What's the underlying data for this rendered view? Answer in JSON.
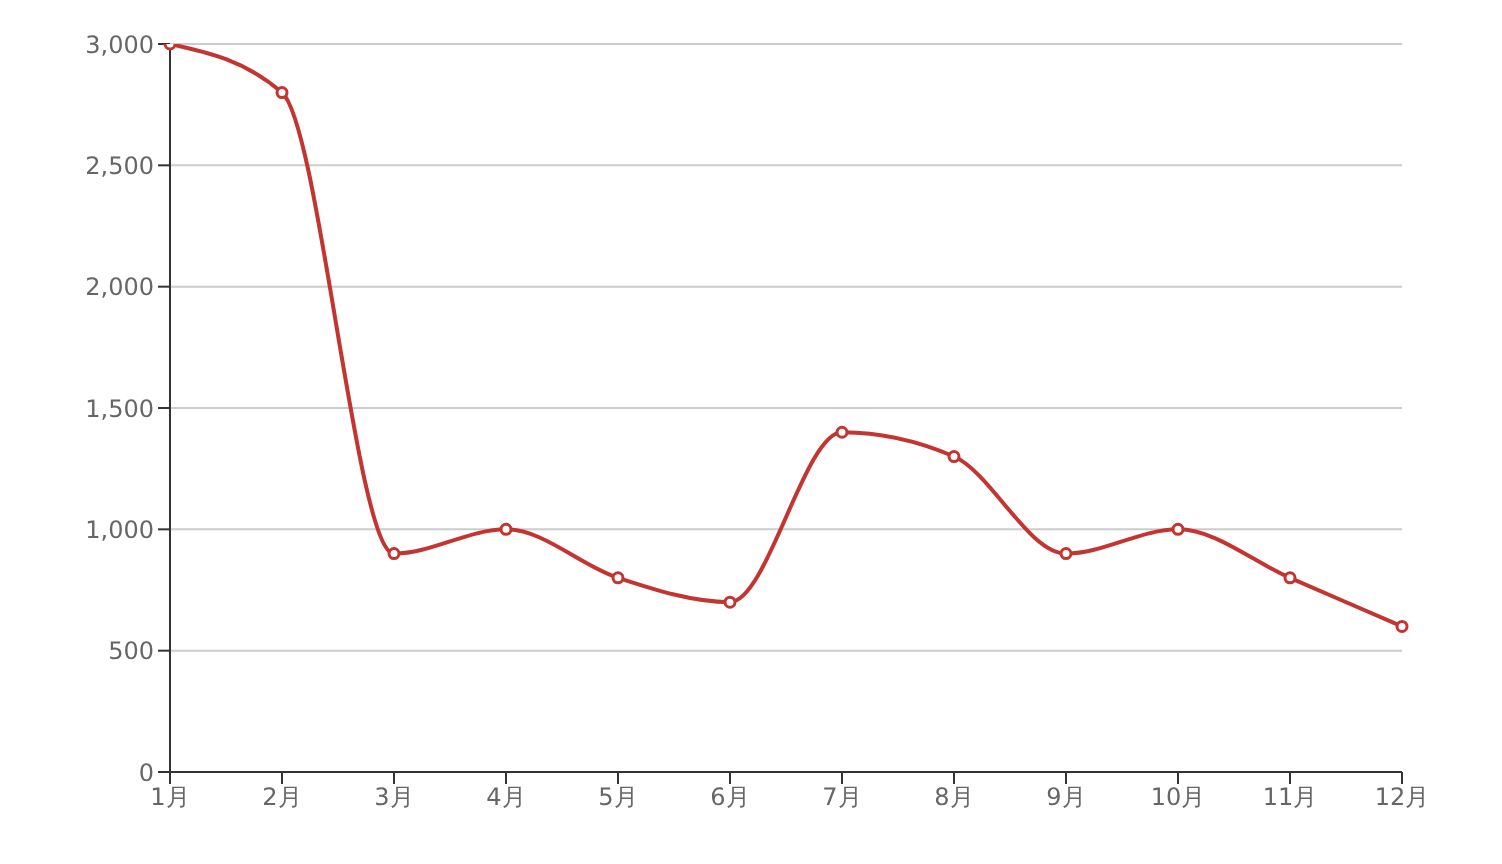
{
  "chart_data": {
    "type": "line",
    "categories": [
      "1月",
      "2月",
      "3月",
      "4月",
      "5月",
      "6月",
      "7月",
      "8月",
      "9月",
      "10月",
      "11月",
      "12月"
    ],
    "values": [
      3000,
      2800,
      900,
      1000,
      800,
      700,
      1400,
      1300,
      900,
      1000,
      800,
      600
    ],
    "color": "#c23531",
    "ylim": [
      0,
      3000
    ],
    "yticks": [
      {
        "value": 0,
        "label": "0"
      },
      {
        "value": 500,
        "label": "500"
      },
      {
        "value": 1000,
        "label": "1,000"
      },
      {
        "value": 1500,
        "label": "1,500"
      },
      {
        "value": 2000,
        "label": "2,000"
      },
      {
        "value": 2500,
        "label": "2,500"
      },
      {
        "value": 3000,
        "label": "3,000"
      }
    ],
    "grid": "y",
    "marker": "circle",
    "line_style": "solid"
  }
}
